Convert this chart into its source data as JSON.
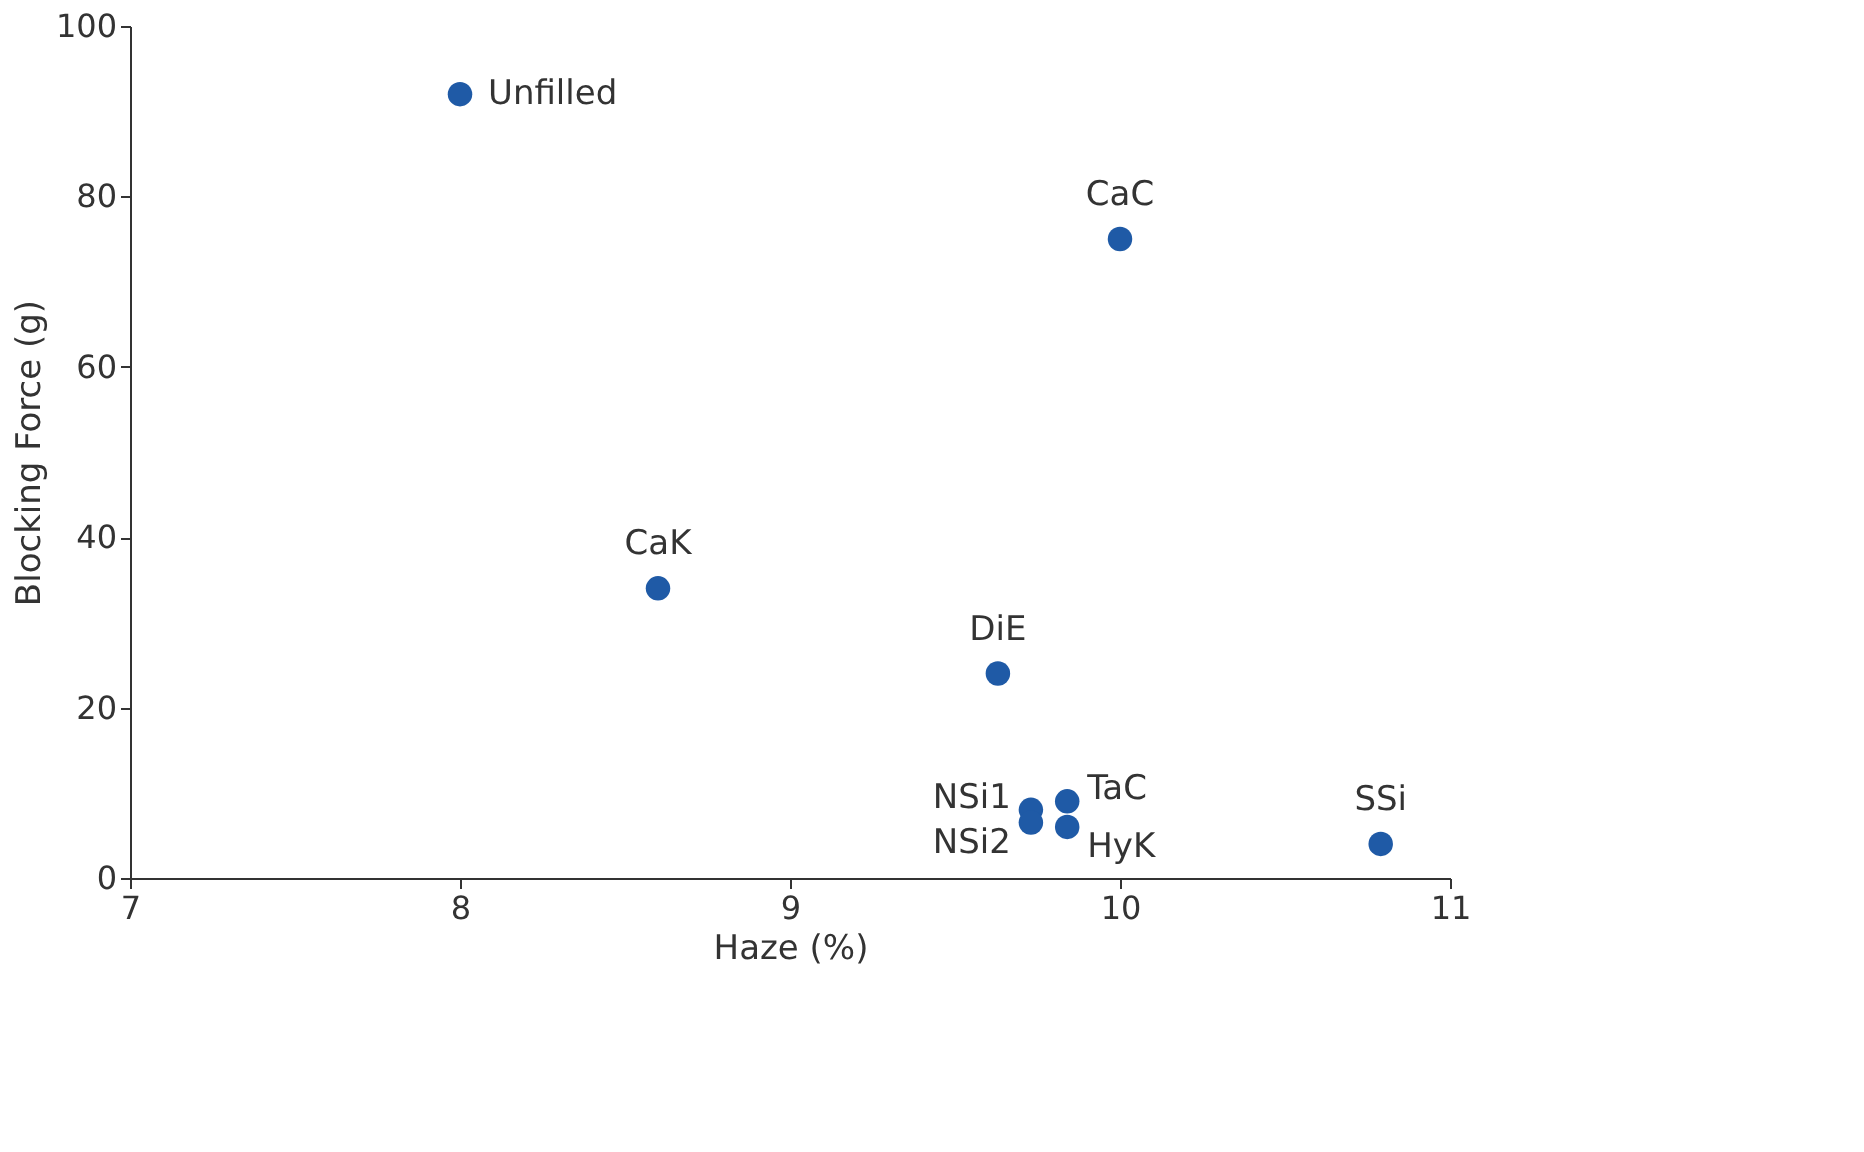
{
  "chart_data": {
    "type": "scatter",
    "xlabel": "Haze (%)",
    "ylabel": "Blocking Force (g)",
    "x": [
      8.0,
      10.0,
      8.6,
      9.63,
      9.73,
      9.73,
      9.84,
      9.84,
      10.79
    ],
    "series": [
      {
        "color": "#1f5aa6",
        "values": [
          92,
          75,
          34,
          24,
          8,
          6.5,
          9,
          6,
          4
        ]
      }
    ],
    "xlim": [
      7,
      11
    ],
    "xticks": [
      7,
      8,
      9,
      10,
      11
    ],
    "ylim": [
      0,
      100
    ],
    "yticks": [
      0,
      20,
      40,
      60,
      80,
      100
    ],
    "grid": false,
    "marker": "circle",
    "annotations": [
      {
        "text": "Unfilled",
        "x": 8.0,
        "y": 92
      },
      {
        "text": "CaC",
        "x": 10.0,
        "y": 75
      },
      {
        "text": "CaK",
        "x": 8.6,
        "y": 34
      },
      {
        "text": "DiE",
        "x": 9.63,
        "y": 24
      },
      {
        "text": "NSi1",
        "x": 9.73,
        "y": 8
      },
      {
        "text": "NSi2",
        "x": 9.73,
        "y": 6.5
      },
      {
        "text": "TaC",
        "x": 9.84,
        "y": 9
      },
      {
        "text": "HyK",
        "x": 9.84,
        "y": 6
      },
      {
        "text": "SSi",
        "x": 10.79,
        "y": 4
      }
    ]
  }
}
